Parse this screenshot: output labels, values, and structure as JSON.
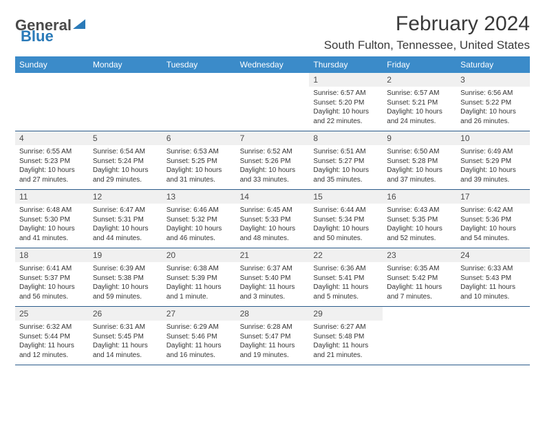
{
  "brand": {
    "part1": "General",
    "part2": "Blue"
  },
  "title": "February 2024",
  "location": "South Fulton, Tennessee, United States",
  "colors": {
    "header_bg": "#3b8bc9",
    "daynum_bg": "#f0f0f0",
    "border": "#2a5a8a",
    "text": "#333333",
    "title_color": "#3a3a3a",
    "brand_blue": "#2a7ab8"
  },
  "day_names": [
    "Sunday",
    "Monday",
    "Tuesday",
    "Wednesday",
    "Thursday",
    "Friday",
    "Saturday"
  ],
  "weeks": [
    [
      {
        "empty": true
      },
      {
        "empty": true
      },
      {
        "empty": true
      },
      {
        "empty": true
      },
      {
        "n": "1",
        "sunrise": "Sunrise: 6:57 AM",
        "sunset": "Sunset: 5:20 PM",
        "day1": "Daylight: 10 hours",
        "day2": "and 22 minutes."
      },
      {
        "n": "2",
        "sunrise": "Sunrise: 6:57 AM",
        "sunset": "Sunset: 5:21 PM",
        "day1": "Daylight: 10 hours",
        "day2": "and 24 minutes."
      },
      {
        "n": "3",
        "sunrise": "Sunrise: 6:56 AM",
        "sunset": "Sunset: 5:22 PM",
        "day1": "Daylight: 10 hours",
        "day2": "and 26 minutes."
      }
    ],
    [
      {
        "n": "4",
        "sunrise": "Sunrise: 6:55 AM",
        "sunset": "Sunset: 5:23 PM",
        "day1": "Daylight: 10 hours",
        "day2": "and 27 minutes."
      },
      {
        "n": "5",
        "sunrise": "Sunrise: 6:54 AM",
        "sunset": "Sunset: 5:24 PM",
        "day1": "Daylight: 10 hours",
        "day2": "and 29 minutes."
      },
      {
        "n": "6",
        "sunrise": "Sunrise: 6:53 AM",
        "sunset": "Sunset: 5:25 PM",
        "day1": "Daylight: 10 hours",
        "day2": "and 31 minutes."
      },
      {
        "n": "7",
        "sunrise": "Sunrise: 6:52 AM",
        "sunset": "Sunset: 5:26 PM",
        "day1": "Daylight: 10 hours",
        "day2": "and 33 minutes."
      },
      {
        "n": "8",
        "sunrise": "Sunrise: 6:51 AM",
        "sunset": "Sunset: 5:27 PM",
        "day1": "Daylight: 10 hours",
        "day2": "and 35 minutes."
      },
      {
        "n": "9",
        "sunrise": "Sunrise: 6:50 AM",
        "sunset": "Sunset: 5:28 PM",
        "day1": "Daylight: 10 hours",
        "day2": "and 37 minutes."
      },
      {
        "n": "10",
        "sunrise": "Sunrise: 6:49 AM",
        "sunset": "Sunset: 5:29 PM",
        "day1": "Daylight: 10 hours",
        "day2": "and 39 minutes."
      }
    ],
    [
      {
        "n": "11",
        "sunrise": "Sunrise: 6:48 AM",
        "sunset": "Sunset: 5:30 PM",
        "day1": "Daylight: 10 hours",
        "day2": "and 41 minutes."
      },
      {
        "n": "12",
        "sunrise": "Sunrise: 6:47 AM",
        "sunset": "Sunset: 5:31 PM",
        "day1": "Daylight: 10 hours",
        "day2": "and 44 minutes."
      },
      {
        "n": "13",
        "sunrise": "Sunrise: 6:46 AM",
        "sunset": "Sunset: 5:32 PM",
        "day1": "Daylight: 10 hours",
        "day2": "and 46 minutes."
      },
      {
        "n": "14",
        "sunrise": "Sunrise: 6:45 AM",
        "sunset": "Sunset: 5:33 PM",
        "day1": "Daylight: 10 hours",
        "day2": "and 48 minutes."
      },
      {
        "n": "15",
        "sunrise": "Sunrise: 6:44 AM",
        "sunset": "Sunset: 5:34 PM",
        "day1": "Daylight: 10 hours",
        "day2": "and 50 minutes."
      },
      {
        "n": "16",
        "sunrise": "Sunrise: 6:43 AM",
        "sunset": "Sunset: 5:35 PM",
        "day1": "Daylight: 10 hours",
        "day2": "and 52 minutes."
      },
      {
        "n": "17",
        "sunrise": "Sunrise: 6:42 AM",
        "sunset": "Sunset: 5:36 PM",
        "day1": "Daylight: 10 hours",
        "day2": "and 54 minutes."
      }
    ],
    [
      {
        "n": "18",
        "sunrise": "Sunrise: 6:41 AM",
        "sunset": "Sunset: 5:37 PM",
        "day1": "Daylight: 10 hours",
        "day2": "and 56 minutes."
      },
      {
        "n": "19",
        "sunrise": "Sunrise: 6:39 AM",
        "sunset": "Sunset: 5:38 PM",
        "day1": "Daylight: 10 hours",
        "day2": "and 59 minutes."
      },
      {
        "n": "20",
        "sunrise": "Sunrise: 6:38 AM",
        "sunset": "Sunset: 5:39 PM",
        "day1": "Daylight: 11 hours",
        "day2": "and 1 minute."
      },
      {
        "n": "21",
        "sunrise": "Sunrise: 6:37 AM",
        "sunset": "Sunset: 5:40 PM",
        "day1": "Daylight: 11 hours",
        "day2": "and 3 minutes."
      },
      {
        "n": "22",
        "sunrise": "Sunrise: 6:36 AM",
        "sunset": "Sunset: 5:41 PM",
        "day1": "Daylight: 11 hours",
        "day2": "and 5 minutes."
      },
      {
        "n": "23",
        "sunrise": "Sunrise: 6:35 AM",
        "sunset": "Sunset: 5:42 PM",
        "day1": "Daylight: 11 hours",
        "day2": "and 7 minutes."
      },
      {
        "n": "24",
        "sunrise": "Sunrise: 6:33 AM",
        "sunset": "Sunset: 5:43 PM",
        "day1": "Daylight: 11 hours",
        "day2": "and 10 minutes."
      }
    ],
    [
      {
        "n": "25",
        "sunrise": "Sunrise: 6:32 AM",
        "sunset": "Sunset: 5:44 PM",
        "day1": "Daylight: 11 hours",
        "day2": "and 12 minutes."
      },
      {
        "n": "26",
        "sunrise": "Sunrise: 6:31 AM",
        "sunset": "Sunset: 5:45 PM",
        "day1": "Daylight: 11 hours",
        "day2": "and 14 minutes."
      },
      {
        "n": "27",
        "sunrise": "Sunrise: 6:29 AM",
        "sunset": "Sunset: 5:46 PM",
        "day1": "Daylight: 11 hours",
        "day2": "and 16 minutes."
      },
      {
        "n": "28",
        "sunrise": "Sunrise: 6:28 AM",
        "sunset": "Sunset: 5:47 PM",
        "day1": "Daylight: 11 hours",
        "day2": "and 19 minutes."
      },
      {
        "n": "29",
        "sunrise": "Sunrise: 6:27 AM",
        "sunset": "Sunset: 5:48 PM",
        "day1": "Daylight: 11 hours",
        "day2": "and 21 minutes."
      },
      {
        "empty": true
      },
      {
        "empty": true
      }
    ]
  ]
}
